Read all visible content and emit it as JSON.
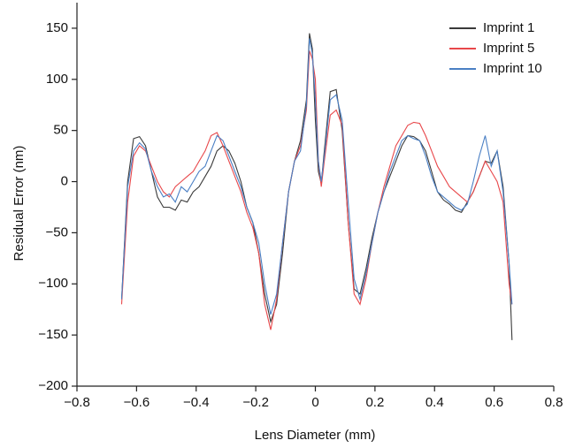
{
  "chart_data": {
    "type": "line",
    "x_label": "Lens Diameter (mm)",
    "y_label": "Residual Error (nm)",
    "xlim": [
      -0.8,
      0.8
    ],
    "ylim": [
      -200,
      175
    ],
    "xticks": [
      {
        "value": -0.8,
        "label": "−0.8"
      },
      {
        "value": -0.6,
        "label": "−0.6"
      },
      {
        "value": -0.4,
        "label": "−0.4"
      },
      {
        "value": -0.2,
        "label": "−0.2"
      },
      0,
      0.2,
      0.4,
      0.6,
      0.8
    ],
    "yticks": [
      {
        "value": -200,
        "label": "−200"
      },
      {
        "value": -150,
        "label": "−150"
      },
      {
        "value": -100,
        "label": "−100"
      },
      {
        "value": -50,
        "label": "−50"
      },
      0,
      50,
      100,
      150
    ],
    "legend": "upper right",
    "x": [
      -0.65,
      -0.63,
      -0.61,
      -0.59,
      -0.57,
      -0.55,
      -0.53,
      -0.51,
      -0.49,
      -0.47,
      -0.45,
      -0.43,
      -0.41,
      -0.39,
      -0.37,
      -0.35,
      -0.33,
      -0.31,
      -0.29,
      -0.27,
      -0.25,
      -0.23,
      -0.21,
      -0.19,
      -0.17,
      -0.15,
      -0.13,
      -0.11,
      -0.09,
      -0.07,
      -0.05,
      -0.03,
      -0.02,
      -0.01,
      0,
      0.01,
      0.02,
      0.03,
      0.05,
      0.07,
      0.09,
      0.11,
      0.13,
      0.15,
      0.17,
      0.19,
      0.21,
      0.23,
      0.25,
      0.27,
      0.29,
      0.31,
      0.33,
      0.35,
      0.37,
      0.39,
      0.41,
      0.43,
      0.45,
      0.47,
      0.49,
      0.51,
      0.53,
      0.55,
      0.57,
      0.59,
      0.61,
      0.63,
      0.65,
      0.66
    ],
    "series": [
      {
        "name": "Imprint 1",
        "color": "#3a3a3a",
        "values": [
          -115,
          0,
          42,
          44,
          35,
          10,
          -15,
          -25,
          -25,
          -28,
          -18,
          -20,
          -10,
          -5,
          5,
          15,
          30,
          35,
          30,
          18,
          0,
          -25,
          -40,
          -70,
          -110,
          -137,
          -120,
          -70,
          -10,
          20,
          40,
          80,
          145,
          130,
          60,
          10,
          -2,
          30,
          88,
          90,
          50,
          -40,
          -105,
          -110,
          -85,
          -55,
          -30,
          -10,
          5,
          20,
          35,
          45,
          44,
          40,
          30,
          10,
          -10,
          -18,
          -22,
          -28,
          -30,
          -20,
          -10,
          5,
          20,
          18,
          30,
          -5,
          -80,
          -155
        ]
      },
      {
        "name": "Imprint 5",
        "color": "#e8474a",
        "values": [
          -120,
          -20,
          25,
          35,
          30,
          15,
          0,
          -10,
          -15,
          -5,
          0,
          5,
          10,
          20,
          30,
          45,
          48,
          35,
          20,
          5,
          -10,
          -30,
          -45,
          -70,
          -120,
          -145,
          -115,
          -60,
          -10,
          20,
          35,
          70,
          128,
          120,
          100,
          20,
          -5,
          20,
          65,
          70,
          55,
          -40,
          -110,
          -120,
          -95,
          -60,
          -30,
          -5,
          15,
          35,
          45,
          55,
          58,
          57,
          45,
          30,
          15,
          5,
          -5,
          -10,
          -15,
          -20,
          -10,
          5,
          20,
          10,
          0,
          -20,
          -100,
          -120
        ]
      },
      {
        "name": "Imprint 10",
        "color": "#4a7fc4",
        "values": [
          -115,
          -5,
          30,
          38,
          32,
          10,
          -5,
          -15,
          -12,
          -20,
          -5,
          -10,
          0,
          10,
          15,
          30,
          45,
          40,
          25,
          10,
          -5,
          -25,
          -40,
          -60,
          -100,
          -130,
          -110,
          -60,
          -10,
          20,
          30,
          75,
          140,
          125,
          80,
          20,
          0,
          25,
          80,
          85,
          60,
          -20,
          -95,
          -115,
          -90,
          -60,
          -30,
          -10,
          10,
          25,
          40,
          45,
          42,
          40,
          25,
          5,
          -10,
          -15,
          -20,
          -25,
          -28,
          -22,
          0,
          25,
          45,
          15,
          30,
          -10,
          -80,
          -120
        ]
      }
    ]
  }
}
